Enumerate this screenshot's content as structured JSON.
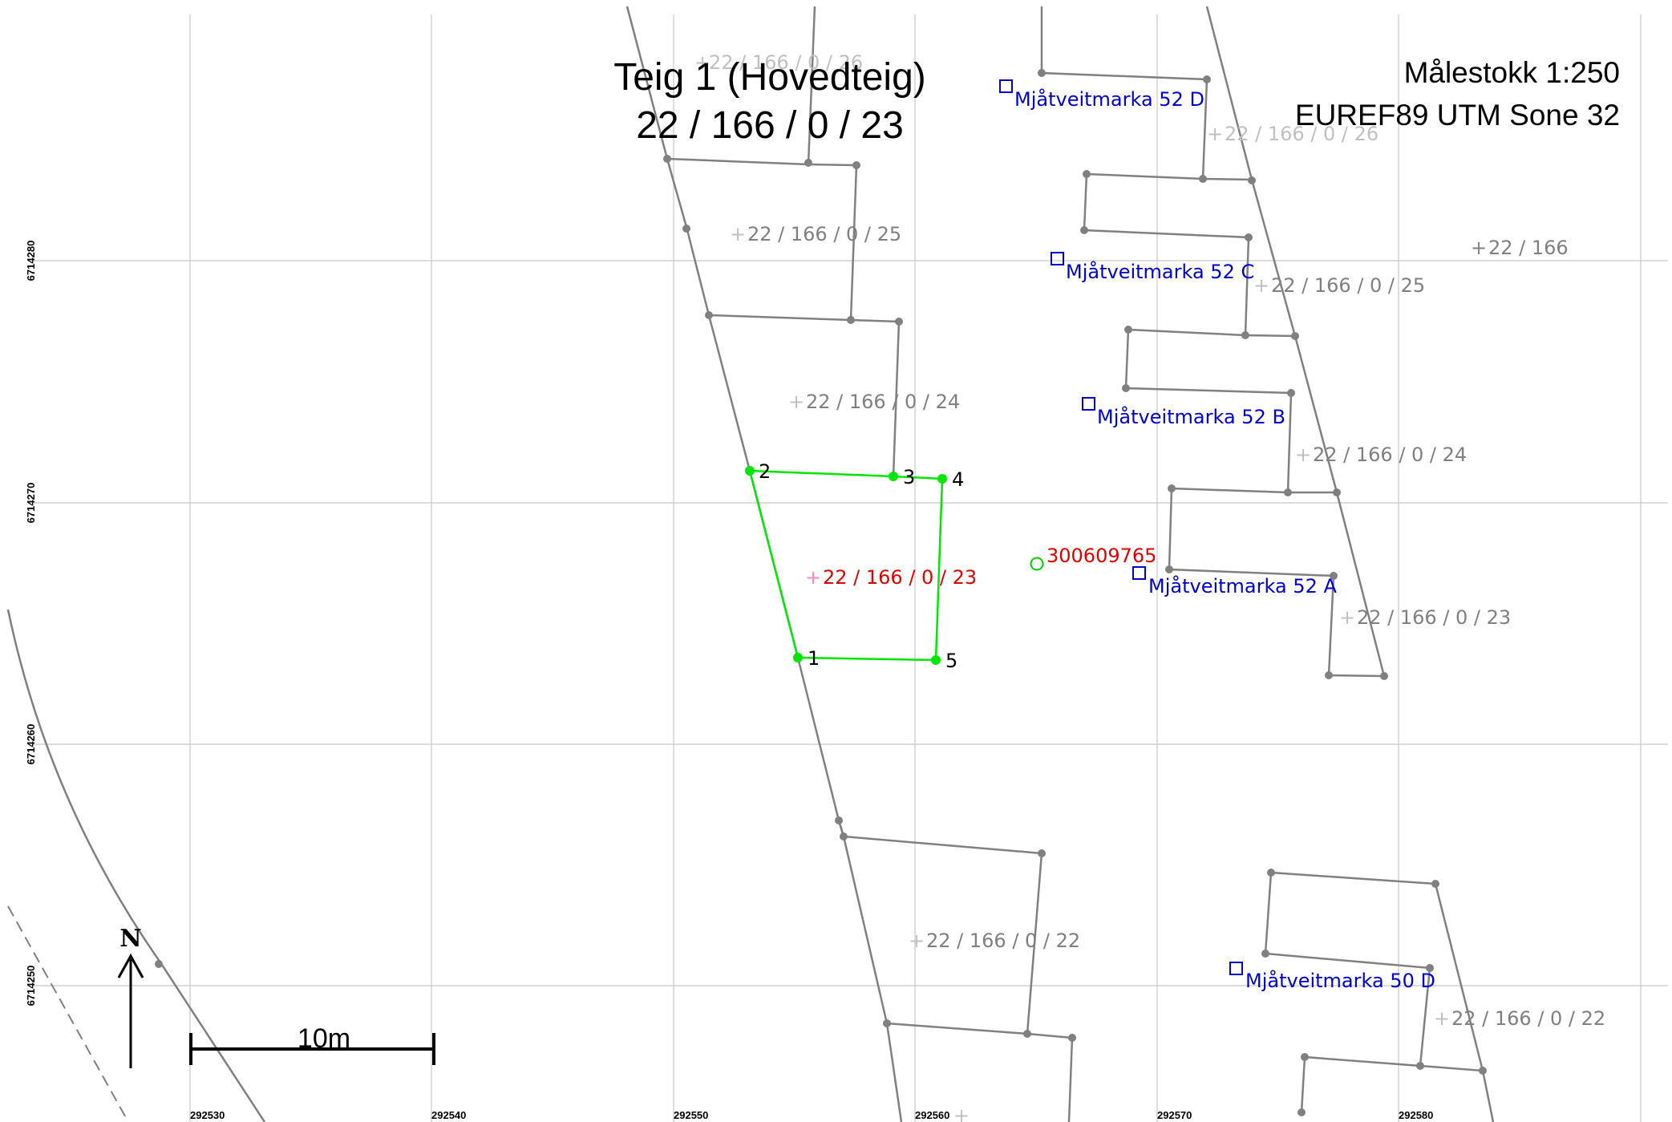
{
  "title": {
    "line1": "Teig 1 (Hovedteig)",
    "line2": "22 / 166 / 0 / 23"
  },
  "scale_text": "Målestokk 1:250",
  "crs_text": "EUREF89 UTM Sone 32",
  "scale_bar_label": "10m",
  "north_label": "N",
  "grid": {
    "x_labels": [
      "292530",
      "292540",
      "292550",
      "292560",
      "292570",
      "292580"
    ],
    "y_labels": [
      "6714280",
      "6714270",
      "6714260",
      "6714250"
    ]
  },
  "parcel_labels": [
    {
      "id": "p26a",
      "text": "22 / 166 / 0 / 26"
    },
    {
      "id": "p25a",
      "text": "22 / 166 / 0 / 25"
    },
    {
      "id": "p24a",
      "text": "22 / 166 / 0 / 24"
    },
    {
      "id": "p23main",
      "text": "22 / 166 / 0 / 23"
    },
    {
      "id": "p22a",
      "text": "22 / 166 / 0 / 22"
    },
    {
      "id": "p26b",
      "text": "22 / 166 / 0 / 26"
    },
    {
      "id": "p166",
      "text": "22 / 166"
    },
    {
      "id": "p25b",
      "text": "22 / 166 / 0 / 25"
    },
    {
      "id": "p24b",
      "text": "22 / 166 / 0 / 24"
    },
    {
      "id": "p23b",
      "text": "22 / 166 / 0 / 23"
    },
    {
      "id": "p22b",
      "text": "22 / 166 / 0 / 22"
    }
  ],
  "address_labels": [
    {
      "id": "a52d",
      "text": "Mjåtveitmarka 52 D"
    },
    {
      "id": "a52c",
      "text": "Mjåtveitmarka 52 C"
    },
    {
      "id": "a52b",
      "text": "Mjåtveitmarka 52 B"
    },
    {
      "id": "a52a",
      "text": "Mjåtveitmarka 52 A"
    },
    {
      "id": "a50d",
      "text": "Mjåtveitmarka 50 D"
    }
  ],
  "building_id": "300609765",
  "vertex_labels": [
    "1",
    "2",
    "3",
    "4",
    "5"
  ],
  "colors": {
    "grid": "#c8c8c8",
    "boundary": "#808080",
    "highlight": "#00e600",
    "address": "#0000cc",
    "building": "#dd0000",
    "label_gray": "#808080",
    "plus_light": "#c0c0c0",
    "plus_main": "#ff88bb"
  }
}
